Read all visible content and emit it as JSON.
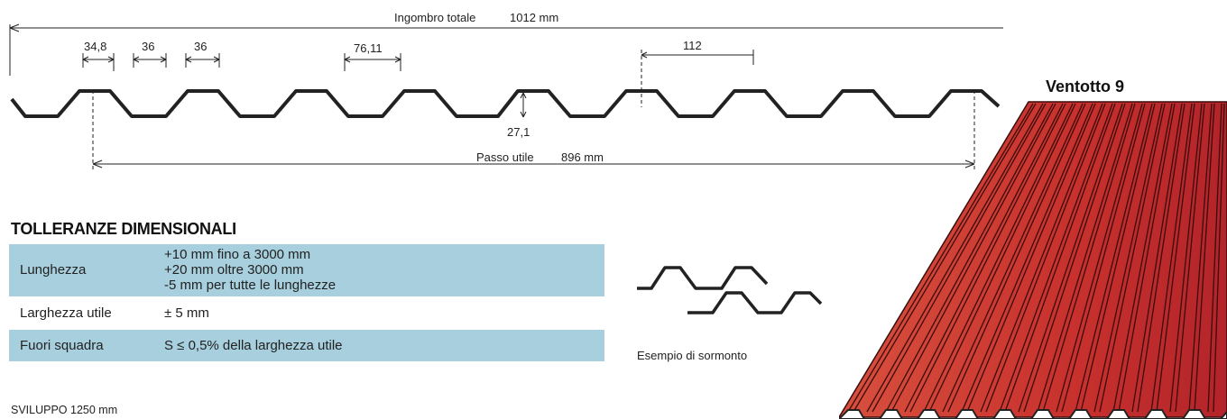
{
  "profile_drawing": {
    "overall_width_label": "Ingombro totale",
    "overall_width_value": "1012 mm",
    "useful_pitch_label": "Passo utile",
    "useful_pitch_value": "896 mm",
    "dimensions": {
      "crest_top": "34,8",
      "valley_bottom": "36",
      "flank": "36",
      "crest_spacing": "76,11",
      "pitch": "112",
      "height": "27,1"
    }
  },
  "product_name": "Ventotto 9",
  "tolerances": {
    "title": "TOLLERANZE DIMENSIONALI",
    "rows": [
      {
        "label": "Lunghezza",
        "lines": [
          "+10 mm fino a 3000 mm",
          "+20 mm oltre 3000 mm",
          "-5 mm per tutte le lunghezze"
        ],
        "shaded": true
      },
      {
        "label": "Larghezza utile",
        "lines": [
          "± 5 mm"
        ],
        "shaded": false
      },
      {
        "label": "Fuori squadra",
        "lines": [
          "S ≤ 0,5% della larghezza utile"
        ],
        "shaded": true
      }
    ]
  },
  "development": "SVILUPPO 1250 mm",
  "overlap_caption": "Esempio di sormonto",
  "colors": {
    "table_shade": "#a7cfdd",
    "sheet_red": "#c8312d",
    "profile_stroke": "#222222"
  }
}
